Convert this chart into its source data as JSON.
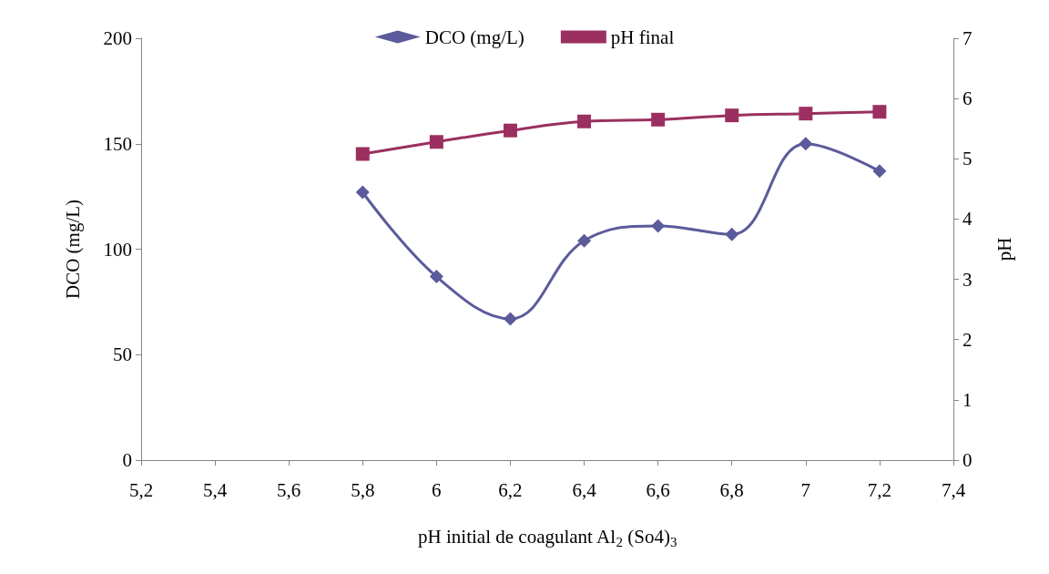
{
  "chart_data": {
    "type": "line",
    "xlabel": "pH initial de coagulant Al$_{2}$ (So4)$_{3}$",
    "ylabel": "DCO (mg/L)",
    "y2label": "pH",
    "x": [
      5.8,
      6,
      6.2,
      6.4,
      6.6,
      6.8,
      7,
      7.2
    ],
    "series": [
      {
        "name": "DCO (mg/L)",
        "color": "#5b5b9b",
        "marker": "diamond",
        "values": [
          127,
          87,
          67,
          104,
          111,
          107,
          150,
          137
        ]
      },
      {
        "name": "pH final",
        "color": "#9b3060",
        "marker": "square",
        "axis": "y2",
        "values": [
          5.08,
          5.28,
          5.47,
          5.62,
          5.65,
          5.72,
          5.75,
          5.78
        ]
      }
    ],
    "xlim": [
      5.2,
      7.4
    ],
    "xticks": [
      {
        "value": 5.2,
        "label": "5,2"
      },
      {
        "value": 5.4,
        "label": "5,4"
      },
      {
        "value": 5.6,
        "label": "5,6"
      },
      {
        "value": 5.8,
        "label": "5,8"
      },
      6,
      {
        "value": 6.2,
        "label": "6,2"
      },
      {
        "value": 6.4,
        "label": "6,4"
      },
      {
        "value": 6.6,
        "label": "6,6"
      },
      {
        "value": 6.8,
        "label": "6,8"
      },
      7,
      {
        "value": 7.2,
        "label": "7,2"
      },
      {
        "value": 7.4,
        "label": "7,4"
      }
    ],
    "ylim": [
      0,
      200
    ],
    "yticks": [
      0,
      50,
      100,
      150,
      200
    ],
    "y2lim": [
      0,
      7
    ],
    "y2ticks": [
      0,
      1,
      2,
      3,
      4,
      5,
      6,
      7
    ],
    "grid": false,
    "legend": "top",
    "line_style": "solid"
  }
}
